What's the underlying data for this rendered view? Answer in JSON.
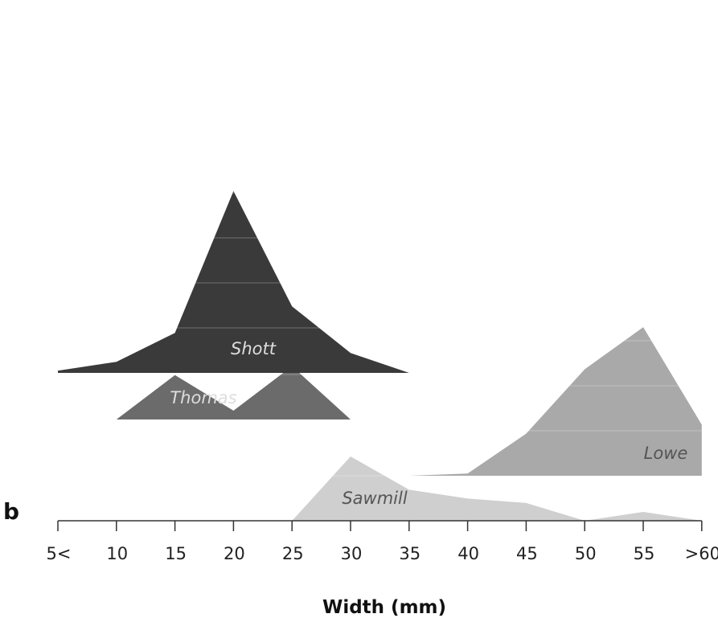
{
  "chart_data": {
    "type": "area",
    "panel_label": "b",
    "xlabel": "Width (mm)",
    "categories": [
      "5<",
      "10",
      "15",
      "20",
      "25",
      "30",
      "35",
      "40",
      "45",
      "50",
      "55",
      ">60"
    ],
    "series": [
      {
        "name": "Lowe",
        "color": "#a9a9a9",
        "label_color": "#555555",
        "y": [
          0,
          0,
          0,
          0,
          0,
          0,
          0,
          0.1,
          1.9,
          4.8,
          6.7,
          2.3
        ]
      },
      {
        "name": "Sawmill",
        "color": "#cfcfcf",
        "label_color": "#555555",
        "y": [
          0,
          0,
          0,
          0,
          0,
          2.9,
          1.4,
          1.0,
          0.8,
          0,
          0.4,
          0
        ]
      },
      {
        "name": "Thomas",
        "color": "#6b6b6b",
        "label_color": "#dddddd",
        "y": [
          0,
          0,
          2.0,
          0.4,
          2.4,
          0,
          0,
          0,
          0,
          0,
          0,
          0
        ]
      },
      {
        "name": "Shott",
        "color": "#3a3a3a",
        "label_color": "#dddddd",
        "y": [
          0.1,
          0.5,
          1.8,
          8.2,
          3.0,
          0.9,
          0,
          0,
          0,
          0,
          0,
          0
        ]
      }
    ]
  }
}
